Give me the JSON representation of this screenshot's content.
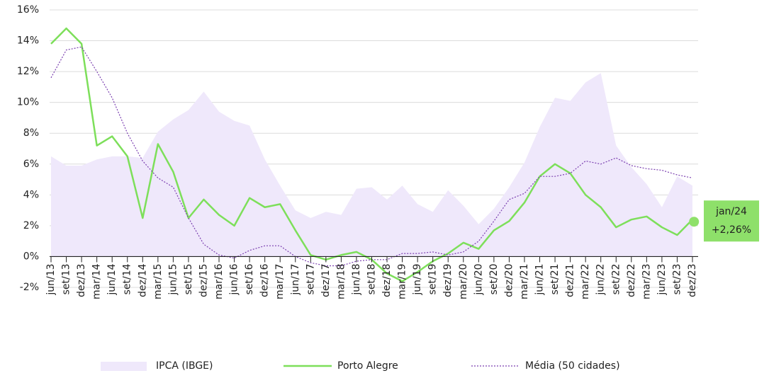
{
  "chart_data": {
    "type": "line",
    "categories": [
      "jun/13",
      "set/13",
      "dez/13",
      "mar/14",
      "jun/14",
      "set/14",
      "dez/14",
      "mar/15",
      "jun/15",
      "set/15",
      "dez/15",
      "mar/16",
      "jun/16",
      "set/16",
      "dez/16",
      "mar/17",
      "jun/17",
      "set/17",
      "dez/17",
      "mar/18",
      "jun/18",
      "set/18",
      "dez/18",
      "mar/19",
      "jun/19",
      "set/19",
      "dez/19",
      "mar/20",
      "jun/20",
      "set/20",
      "dez/20",
      "mar/21",
      "jun/21",
      "set/21",
      "dez/21",
      "mar/22",
      "jun/22",
      "set/22",
      "dez/22",
      "mar/23",
      "jun/23",
      "set/23",
      "dez/23"
    ],
    "series": [
      {
        "name": "IPCA (IBGE)",
        "color": "#efe8fb",
        "style": "area",
        "values": [
          6.5,
          5.9,
          5.9,
          6.3,
          6.5,
          6.5,
          6.4,
          8.1,
          8.9,
          9.5,
          10.7,
          9.4,
          8.8,
          8.5,
          6.3,
          4.6,
          3.0,
          2.5,
          2.9,
          2.7,
          4.4,
          4.5,
          3.7,
          4.6,
          3.4,
          2.9,
          4.3,
          3.3,
          2.1,
          3.1,
          4.5,
          6.1,
          8.4,
          10.3,
          10.1,
          11.3,
          11.9,
          7.2,
          5.8,
          4.7,
          3.2,
          5.2,
          4.6
        ]
      },
      {
        "name": "Porto Alegre",
        "color": "#7ddf5a",
        "style": "solid",
        "values": [
          13.8,
          14.8,
          13.8,
          7.2,
          7.8,
          6.5,
          2.5,
          7.3,
          5.5,
          2.5,
          3.7,
          2.7,
          2.0,
          3.8,
          3.2,
          3.4,
          1.7,
          0.1,
          -0.2,
          0.1,
          0.3,
          -0.2,
          -1.1,
          -1.6,
          -1.0,
          -0.3,
          0.2,
          0.9,
          0.5,
          1.7,
          2.3,
          3.5,
          5.2,
          6.0,
          5.4,
          4.0,
          3.2,
          1.9,
          2.4,
          2.6,
          1.9,
          1.4,
          2.4
        ]
      },
      {
        "name": "Média (50 cidades)",
        "color": "#7b3fb0",
        "style": "dotted",
        "values": [
          11.6,
          13.4,
          13.6,
          12.0,
          10.3,
          8.0,
          6.2,
          5.1,
          4.5,
          2.5,
          0.8,
          0.1,
          -0.1,
          0.4,
          0.7,
          0.7,
          0.0,
          -0.4,
          -0.6,
          -0.6,
          -0.3,
          -0.2,
          -0.2,
          0.2,
          0.2,
          0.3,
          0.1,
          0.3,
          1.0,
          2.3,
          3.7,
          4.1,
          5.2,
          5.2,
          5.4,
          6.2,
          6.0,
          6.4,
          5.9,
          5.7,
          5.6,
          5.3,
          5.1
        ]
      }
    ],
    "annotation": {
      "label": "jan/24",
      "value": 2.26,
      "value_label": "+2,26%",
      "color": "#8ee06a"
    },
    "ylim": [
      -2,
      16
    ],
    "yticks": [
      {
        "value": -2,
        "label": "-2%"
      },
      {
        "value": 0,
        "label": "0%"
      },
      {
        "value": 2,
        "label": "2%"
      },
      {
        "value": 4,
        "label": "4%"
      },
      {
        "value": 6,
        "label": "6%"
      },
      {
        "value": 8,
        "label": "8%"
      },
      {
        "value": 10,
        "label": "10%"
      },
      {
        "value": 12,
        "label": "12%"
      },
      {
        "value": 14,
        "label": "14%"
      },
      {
        "value": 16,
        "label": "16%"
      }
    ],
    "grid": true
  }
}
